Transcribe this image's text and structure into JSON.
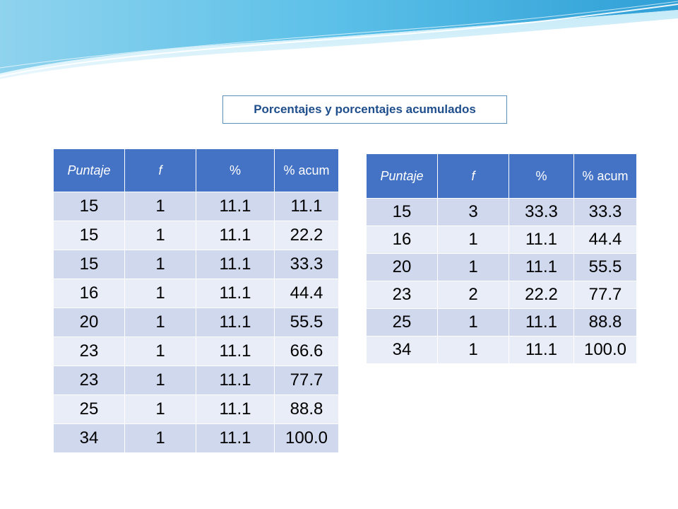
{
  "title": "Porcentajes y porcentajes acumulados",
  "colors": {
    "header": "#4472c4",
    "row_odd": "#d0d8ee",
    "row_even": "#e9edf7",
    "title_text": "#1f4e8c",
    "title_border": "#5b8fb9"
  },
  "table_left": {
    "headers": [
      "Puntaje",
      "f",
      "%",
      "% acum"
    ],
    "rows": [
      [
        "15",
        "1",
        "11.1",
        "11.1"
      ],
      [
        "15",
        "1",
        "11.1",
        "22.2"
      ],
      [
        "15",
        "1",
        "11.1",
        "33.3"
      ],
      [
        "16",
        "1",
        "11.1",
        "44.4"
      ],
      [
        "20",
        "1",
        "11.1",
        "55.5"
      ],
      [
        "23",
        "1",
        "11.1",
        "66.6"
      ],
      [
        "23",
        "1",
        "11.1",
        "77.7"
      ],
      [
        "25",
        "1",
        "11.1",
        "88.8"
      ],
      [
        "34",
        "1",
        "11.1",
        "100.0"
      ]
    ]
  },
  "table_right": {
    "headers": [
      "Puntaje",
      "f",
      "%",
      "% acum"
    ],
    "rows": [
      [
        "15",
        "3",
        "33.3",
        "33.3"
      ],
      [
        "16",
        "1",
        "11.1",
        "44.4"
      ],
      [
        "20",
        "1",
        "11.1",
        "55.5"
      ],
      [
        "23",
        "2",
        "22.2",
        "77.7"
      ],
      [
        "25",
        "1",
        "11.1",
        "88.8"
      ],
      [
        "34",
        "1",
        "11.1",
        "100.0"
      ]
    ]
  }
}
